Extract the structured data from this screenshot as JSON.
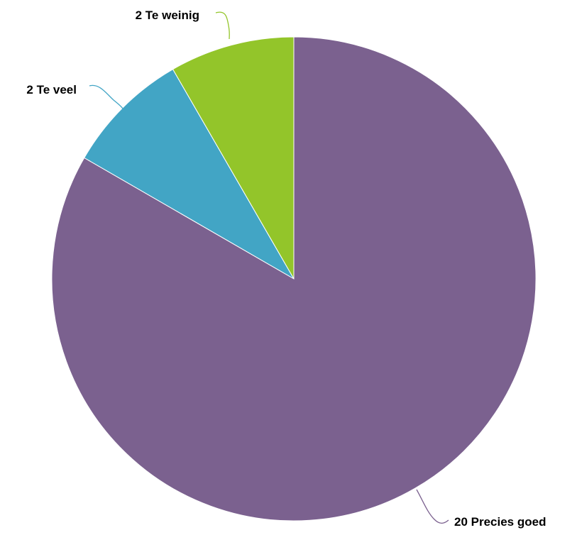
{
  "chart_data": {
    "type": "pie",
    "title": "",
    "start_angle_deg": 0,
    "direction": "counterclockwise",
    "slices": [
      {
        "label": "Te weinig",
        "value": 2,
        "color": "#93C52A",
        "data_label": "2 Te weinig"
      },
      {
        "label": "Te veel",
        "value": 2,
        "color": "#42A5C5",
        "data_label": "2 Te veel"
      },
      {
        "label": "Precies goed",
        "value": 20,
        "color": "#7B618F",
        "data_label": "20 Precies goed"
      }
    ],
    "legend": "none",
    "data_labels": "outside with leader lines"
  }
}
